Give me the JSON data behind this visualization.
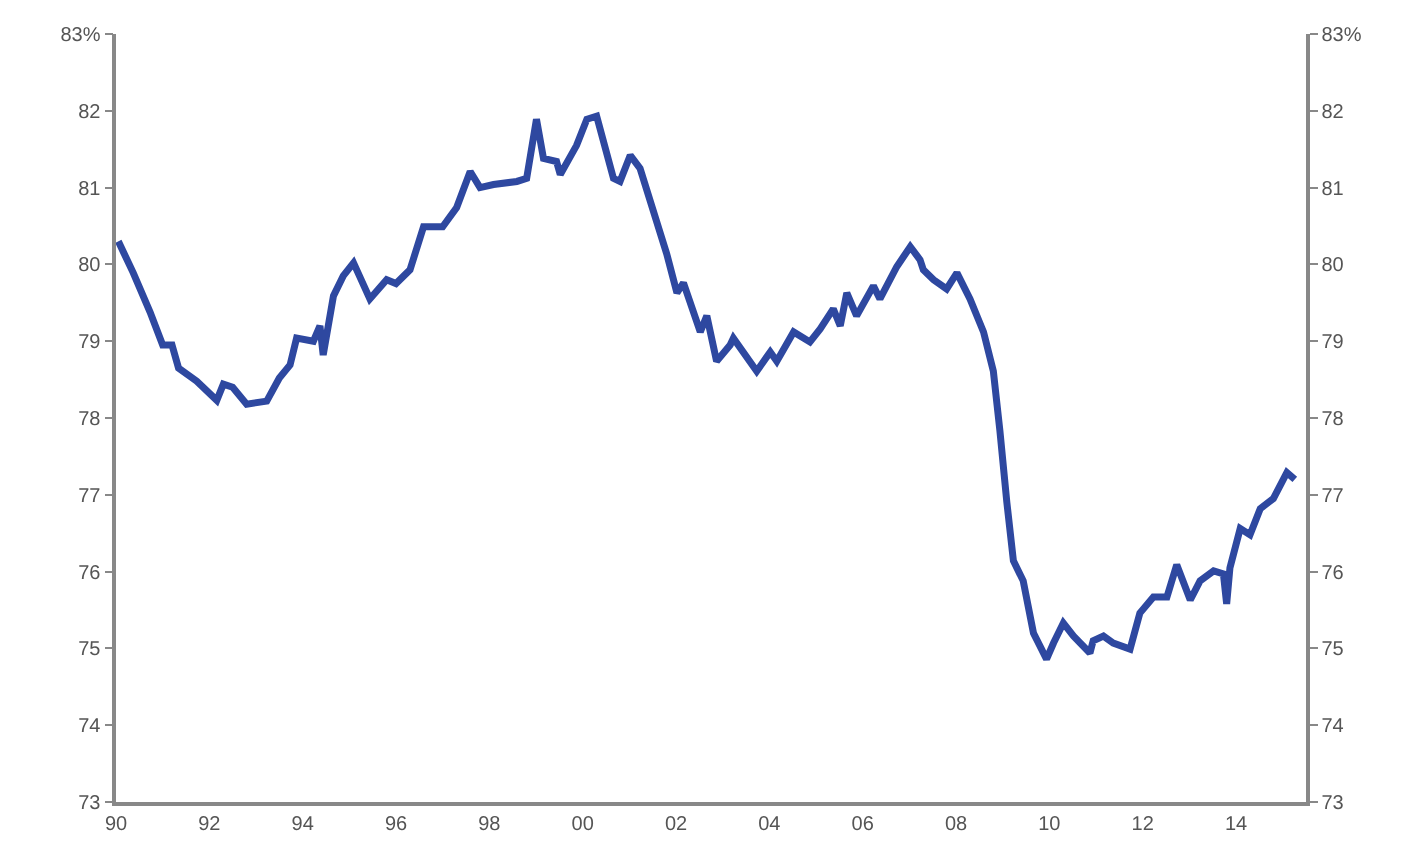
{
  "chart_data": {
    "type": "line",
    "x": [
      1990.05,
      1990.37,
      1990.73,
      1991.0,
      1991.2,
      1991.34,
      1991.73,
      1992.16,
      1992.3,
      1992.5,
      1992.8,
      1993.23,
      1993.5,
      1993.73,
      1993.87,
      1994.23,
      1994.37,
      1994.44,
      1994.66,
      1994.87,
      1995.09,
      1995.44,
      1995.8,
      1996.0,
      1996.3,
      1996.59,
      1997.0,
      1997.3,
      1997.59,
      1997.8,
      1998.09,
      1998.59,
      1998.8,
      1999.01,
      1999.16,
      1999.44,
      1999.52,
      1999.87,
      2000.09,
      2000.3,
      2000.66,
      2000.8,
      2001.02,
      2001.23,
      2001.8,
      2002.02,
      2002.16,
      2002.52,
      2002.66,
      2002.87,
      2003.16,
      2003.23,
      2003.73,
      2004.02,
      2004.16,
      2004.52,
      2004.87,
      2005.09,
      2005.37,
      2005.52,
      2005.66,
      2005.87,
      2006.23,
      2006.37,
      2006.73,
      2007.02,
      2007.23,
      2007.3,
      2007.52,
      2007.8,
      2008.02,
      2008.3,
      2008.59,
      2008.8,
      2008.94,
      2009.09,
      2009.23,
      2009.44,
      2009.66,
      2009.94,
      2010.09,
      2010.3,
      2010.52,
      2010.87,
      2010.94,
      2011.16,
      2011.37,
      2011.73,
      2011.94,
      2012.23,
      2012.52,
      2012.73,
      2013.02,
      2013.23,
      2013.52,
      2013.73,
      2013.8,
      2013.87,
      2014.09,
      2014.3,
      2014.52,
      2014.8,
      2015.09,
      2015.26
    ],
    "series": [
      {
        "color": "#2e48a0",
        "values": [
          80.3,
          79.89,
          79.38,
          78.95,
          78.95,
          78.65,
          78.48,
          78.23,
          78.44,
          78.4,
          78.18,
          78.22,
          78.52,
          78.69,
          79.04,
          79.0,
          79.2,
          78.82,
          79.59,
          79.85,
          80.02,
          79.55,
          79.8,
          79.75,
          79.93,
          80.49,
          80.49,
          80.74,
          81.21,
          81.0,
          81.04,
          81.08,
          81.12,
          81.89,
          81.38,
          81.34,
          81.17,
          81.55,
          81.89,
          81.93,
          81.12,
          81.08,
          81.42,
          81.25,
          80.14,
          79.63,
          79.76,
          79.12,
          79.33,
          78.74,
          78.95,
          79.04,
          78.61,
          78.86,
          78.74,
          79.12,
          78.99,
          79.16,
          79.42,
          79.2,
          79.63,
          79.33,
          79.72,
          79.55,
          79.97,
          80.23,
          80.06,
          79.93,
          79.8,
          79.68,
          79.89,
          79.55,
          79.12,
          78.61,
          77.84,
          76.9,
          76.14,
          75.88,
          75.2,
          74.86,
          75.07,
          75.33,
          75.16,
          74.94,
          75.1,
          75.16,
          75.07,
          74.99,
          75.46,
          75.67,
          75.67,
          76.09,
          75.63,
          75.88,
          76.01,
          75.97,
          75.58,
          76.05,
          76.56,
          76.48,
          76.82,
          76.95,
          77.29,
          77.2
        ]
      }
    ],
    "xlim": [
      1990,
      2015.5
    ],
    "xticks": [
      {
        "value": 1990,
        "label": "90"
      },
      {
        "value": 1992,
        "label": "92"
      },
      {
        "value": 1994,
        "label": "94"
      },
      {
        "value": 1996,
        "label": "96"
      },
      {
        "value": 1998,
        "label": "98"
      },
      {
        "value": 2000,
        "label": "00"
      },
      {
        "value": 2002,
        "label": "02"
      },
      {
        "value": 2004,
        "label": "04"
      },
      {
        "value": 2006,
        "label": "06"
      },
      {
        "value": 2008,
        "label": "08"
      },
      {
        "value": 2010,
        "label": "10"
      },
      {
        "value": 2012,
        "label": "12"
      },
      {
        "value": 2014,
        "label": "14"
      }
    ],
    "ylim": [
      73,
      83
    ],
    "yticks": [
      73,
      74,
      75,
      76,
      77,
      78,
      79,
      80,
      81,
      82,
      {
        "value": 83,
        "label": "83%"
      }
    ],
    "y2lim": [
      73,
      83
    ],
    "y2ticks": [
      73,
      74,
      75,
      76,
      77,
      78,
      79,
      80,
      81,
      82,
      {
        "value": 83,
        "label": "83%"
      }
    ],
    "marker": "none",
    "line_style": "solid"
  }
}
